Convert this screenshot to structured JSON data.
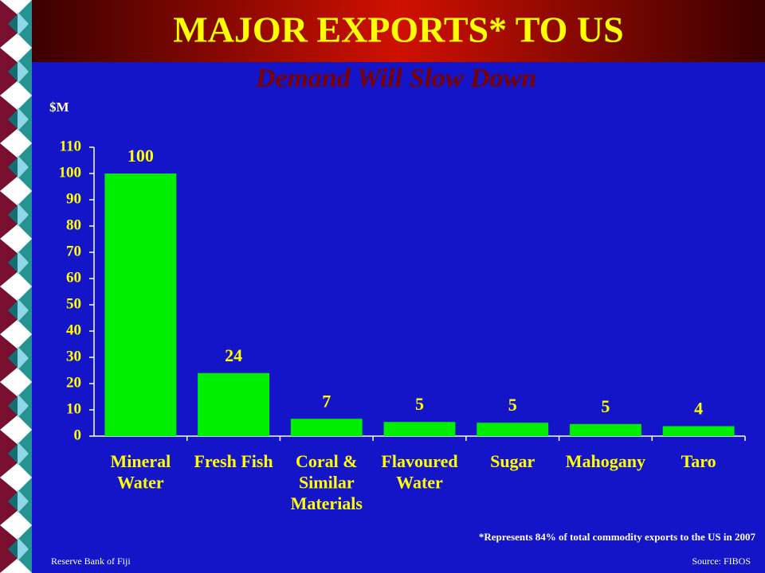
{
  "chart_data": {
    "type": "bar",
    "title": "MAJOR EXPORTS* TO US",
    "subtitle": "Demand Will Slow Down",
    "y_label": "$M",
    "categories": [
      "Mineral\nWater",
      "Fresh Fish",
      "Coral &\nSimilar\nMaterials",
      "Flavoured\nWater",
      "Sugar",
      "Mahogany",
      "Taro"
    ],
    "values": [
      100,
      24,
      6.6,
      5.4,
      5.1,
      4.6,
      3.8
    ],
    "value_labels": [
      "100",
      "24",
      "7",
      "5",
      "5",
      "5",
      "4"
    ],
    "color": "#00ee00",
    "ylim": [
      0,
      110
    ],
    "yticks": [
      0,
      10,
      20,
      30,
      40,
      50,
      60,
      70,
      80,
      90,
      100,
      110
    ],
    "note": "*Represents 84% of total commodity exports to the US in 2007"
  },
  "footer": {
    "left": "Reserve Bank of Fiji",
    "right": "Source:  FIBOS"
  }
}
